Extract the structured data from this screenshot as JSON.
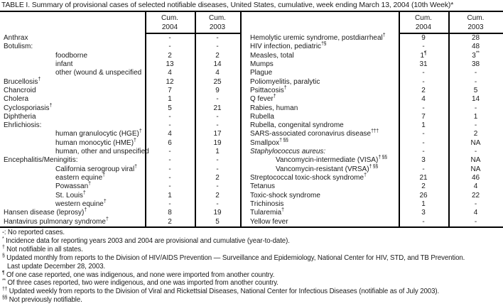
{
  "title": "TABLE I. Summary of provisional cases of selected notifiable diseases, United States, cumulative, week ending March 13, 2004 (10th Week)*",
  "header": {
    "cum": "Cum.",
    "year_2004": "2004",
    "year_2003": "2003"
  },
  "colors": {
    "text": "#1a1a1a",
    "rule": "#000000",
    "background": "#ffffff"
  },
  "table": {
    "left_rows": [
      {
        "label": "Anthrax",
        "sup": "",
        "indent": false,
        "italic": false,
        "c2004": "-",
        "c2004_sup": "",
        "c2003": "-",
        "c2003_sup": ""
      },
      {
        "label": "Botulism:",
        "sup": "",
        "indent": false,
        "italic": false,
        "c2004": "-",
        "c2004_sup": "",
        "c2003": "-",
        "c2003_sup": ""
      },
      {
        "label": "foodborne",
        "sup": "",
        "indent": true,
        "italic": false,
        "c2004": "2",
        "c2004_sup": "",
        "c2003": "2",
        "c2003_sup": ""
      },
      {
        "label": "infant",
        "sup": "",
        "indent": true,
        "italic": false,
        "c2004": "13",
        "c2004_sup": "",
        "c2003": "14",
        "c2003_sup": ""
      },
      {
        "label": "other (wound & unspecified",
        "sup": "",
        "indent": true,
        "italic": false,
        "c2004": "4",
        "c2004_sup": "",
        "c2003": "4",
        "c2003_sup": ""
      },
      {
        "label": "Brucellosis",
        "sup": "†",
        "indent": false,
        "italic": false,
        "c2004": "12",
        "c2004_sup": "",
        "c2003": "25",
        "c2003_sup": ""
      },
      {
        "label": "Chancroid",
        "sup": "",
        "indent": false,
        "italic": false,
        "c2004": "7",
        "c2004_sup": "",
        "c2003": "9",
        "c2003_sup": ""
      },
      {
        "label": "Cholera",
        "sup": "",
        "indent": false,
        "italic": false,
        "c2004": "1",
        "c2004_sup": "",
        "c2003": "-",
        "c2003_sup": ""
      },
      {
        "label": "Cyclosporiasis",
        "sup": "†",
        "indent": false,
        "italic": false,
        "c2004": "5",
        "c2004_sup": "",
        "c2003": "21",
        "c2003_sup": ""
      },
      {
        "label": "Diphtheria",
        "sup": "",
        "indent": false,
        "italic": false,
        "c2004": "-",
        "c2004_sup": "",
        "c2003": "-",
        "c2003_sup": ""
      },
      {
        "label": "Ehrlichiosis:",
        "sup": "",
        "indent": false,
        "italic": false,
        "c2004": "-",
        "c2004_sup": "",
        "c2003": "-",
        "c2003_sup": ""
      },
      {
        "label": "human granulocytic (HGE)",
        "sup": "†",
        "indent": true,
        "italic": false,
        "c2004": "4",
        "c2004_sup": "",
        "c2003": "17",
        "c2003_sup": ""
      },
      {
        "label": "human monocytic (HME)",
        "sup": "†",
        "indent": true,
        "italic": false,
        "c2004": "6",
        "c2004_sup": "",
        "c2003": "19",
        "c2003_sup": ""
      },
      {
        "label": "human, other and unspecified",
        "sup": "",
        "indent": true,
        "italic": false,
        "c2004": "-",
        "c2004_sup": "",
        "c2003": "1",
        "c2003_sup": ""
      },
      {
        "label": "Encephalitis/Meningitis:",
        "sup": "",
        "indent": false,
        "italic": false,
        "c2004": "-",
        "c2004_sup": "",
        "c2003": "-",
        "c2003_sup": ""
      },
      {
        "label": "California serogroup viral",
        "sup": "†",
        "indent": true,
        "italic": false,
        "c2004": "-",
        "c2004_sup": "",
        "c2003": "-",
        "c2003_sup": ""
      },
      {
        "label": "eastern equine",
        "sup": "†",
        "indent": true,
        "italic": false,
        "c2004": "-",
        "c2004_sup": "",
        "c2003": "2",
        "c2003_sup": ""
      },
      {
        "label": "Powassan",
        "sup": "†",
        "indent": true,
        "italic": false,
        "c2004": "-",
        "c2004_sup": "",
        "c2003": "-",
        "c2003_sup": ""
      },
      {
        "label": "St. Louis",
        "sup": "†",
        "indent": true,
        "italic": false,
        "c2004": "1",
        "c2004_sup": "",
        "c2003": "2",
        "c2003_sup": ""
      },
      {
        "label": "western equine",
        "sup": "†",
        "indent": true,
        "italic": false,
        "c2004": "-",
        "c2004_sup": "",
        "c2003": "-",
        "c2003_sup": ""
      },
      {
        "label": "Hansen disease (leprosy)",
        "sup": "†",
        "indent": false,
        "italic": false,
        "c2004": "8",
        "c2004_sup": "",
        "c2003": "19",
        "c2003_sup": ""
      },
      {
        "label": "Hantavirus pulmonary syndrome",
        "sup": "†",
        "indent": false,
        "italic": false,
        "c2004": "2",
        "c2004_sup": "",
        "c2003": "5",
        "c2003_sup": ""
      }
    ],
    "right_rows": [
      {
        "label": "Hemolytic uremic syndrome, postdiarrheal",
        "sup": "†",
        "indent": false,
        "italic": false,
        "c2004": "9",
        "c2004_sup": "",
        "c2003": "28",
        "c2003_sup": ""
      },
      {
        "label": "HIV infection, pediatric",
        "sup": "†§",
        "indent": false,
        "italic": false,
        "c2004": "-",
        "c2004_sup": "",
        "c2003": "48",
        "c2003_sup": ""
      },
      {
        "label": "Measles, total",
        "sup": "",
        "indent": false,
        "italic": false,
        "c2004": "1",
        "c2004_sup": "¶",
        "c2003": "3",
        "c2003_sup": "**"
      },
      {
        "label": "Mumps",
        "sup": "",
        "indent": false,
        "italic": false,
        "c2004": "31",
        "c2004_sup": "",
        "c2003": "38",
        "c2003_sup": ""
      },
      {
        "label": "Plague",
        "sup": "",
        "indent": false,
        "italic": false,
        "c2004": "-",
        "c2004_sup": "",
        "c2003": "-",
        "c2003_sup": ""
      },
      {
        "label": "Poliomyelitis, paralytic",
        "sup": "",
        "indent": false,
        "italic": false,
        "c2004": "-",
        "c2004_sup": "",
        "c2003": "-",
        "c2003_sup": ""
      },
      {
        "label": "Psittacosis",
        "sup": "†",
        "indent": false,
        "italic": false,
        "c2004": "2",
        "c2004_sup": "",
        "c2003": "5",
        "c2003_sup": ""
      },
      {
        "label": "Q fever",
        "sup": "†",
        "indent": false,
        "italic": false,
        "c2004": "4",
        "c2004_sup": "",
        "c2003": "14",
        "c2003_sup": ""
      },
      {
        "label": "Rabies, human",
        "sup": "",
        "indent": false,
        "italic": false,
        "c2004": "-",
        "c2004_sup": "",
        "c2003": "-",
        "c2003_sup": ""
      },
      {
        "label": "Rubella",
        "sup": "",
        "indent": false,
        "italic": false,
        "c2004": "7",
        "c2004_sup": "",
        "c2003": "1",
        "c2003_sup": ""
      },
      {
        "label": "Rubella, congenital syndrome",
        "sup": "",
        "indent": false,
        "italic": false,
        "c2004": "1",
        "c2004_sup": "",
        "c2003": "-",
        "c2003_sup": ""
      },
      {
        "label": "SARS-associated coronavirus disease",
        "sup": "†††",
        "indent": false,
        "italic": false,
        "c2004": "-",
        "c2004_sup": "",
        "c2003": "2",
        "c2003_sup": ""
      },
      {
        "label": "Smallpox",
        "sup": "† §§",
        "indent": false,
        "italic": false,
        "c2004": "-",
        "c2004_sup": "",
        "c2003": "NA",
        "c2003_sup": ""
      },
      {
        "label": "Staphylococcus aureus:",
        "sup": "",
        "indent": false,
        "italic": true,
        "c2004": "-",
        "c2004_sup": "",
        "c2003": "-",
        "c2003_sup": ""
      },
      {
        "label": "Vancomycin-intermediate (VISA)",
        "sup": "† §§",
        "indent": true,
        "italic": false,
        "c2004": "3",
        "c2004_sup": "",
        "c2003": "NA",
        "c2003_sup": ""
      },
      {
        "label": "Vancomycin-resistant (VRSA)",
        "sup": "† §§",
        "indent": true,
        "italic": false,
        "c2004": "-",
        "c2004_sup": "",
        "c2003": "NA",
        "c2003_sup": ""
      },
      {
        "label": "Streptococcal toxic-shock syndrome",
        "sup": "†",
        "indent": false,
        "italic": false,
        "c2004": "21",
        "c2004_sup": "",
        "c2003": "46",
        "c2003_sup": ""
      },
      {
        "label": "Tetanus",
        "sup": "",
        "indent": false,
        "italic": false,
        "c2004": "2",
        "c2004_sup": "",
        "c2003": "4",
        "c2003_sup": ""
      },
      {
        "label": "Toxic-shock syndrome",
        "sup": "",
        "indent": false,
        "italic": false,
        "c2004": "26",
        "c2004_sup": "",
        "c2003": "22",
        "c2003_sup": ""
      },
      {
        "label": "Trichinosis",
        "sup": "",
        "indent": false,
        "italic": false,
        "c2004": "1",
        "c2004_sup": "",
        "c2003": "-",
        "c2003_sup": ""
      },
      {
        "label": "Tularemia",
        "sup": "†",
        "indent": false,
        "italic": false,
        "c2004": "3",
        "c2004_sup": "",
        "c2003": "4",
        "c2003_sup": ""
      },
      {
        "label": "Yellow fever",
        "sup": "",
        "indent": false,
        "italic": false,
        "c2004": "-",
        "c2004_sup": "",
        "c2003": "-",
        "c2003_sup": ""
      }
    ]
  },
  "footnotes": [
    {
      "marker": "-:",
      "superscript": false,
      "continuation": false,
      "text": "No reported cases."
    },
    {
      "marker": "*",
      "superscript": true,
      "continuation": false,
      "text": "Incidence data for reporting years 2003 and 2004 are provisional and cumulative (year-to-date)."
    },
    {
      "marker": "†",
      "superscript": true,
      "continuation": false,
      "text": "Not notifiable in all states."
    },
    {
      "marker": "§",
      "superscript": true,
      "continuation": false,
      "text": "Updated monthly from reports to the Division of HIV/AIDS Prevention — Surveillance and Epidemiology, National Center for HIV, STD, and TB Prevention."
    },
    {
      "marker": "",
      "superscript": false,
      "continuation": true,
      "text": "Last update December 28, 2003."
    },
    {
      "marker": "¶",
      "superscript": true,
      "continuation": false,
      "text": "Of one case reported, one was indigenous, and none were imported from another country."
    },
    {
      "marker": "**",
      "superscript": true,
      "continuation": false,
      "text": "Of three cases reported, two were indigenous, and one was imported from another country."
    },
    {
      "marker": "††",
      "superscript": true,
      "continuation": false,
      "text": "Updated weekly from reports to the Division of Viral and Rickettsial Diseases, National Center for Infectious Diseases (notifiable as of July 2003)."
    },
    {
      "marker": "§§",
      "superscript": true,
      "continuation": false,
      "text": "Not previously notifiable."
    }
  ]
}
